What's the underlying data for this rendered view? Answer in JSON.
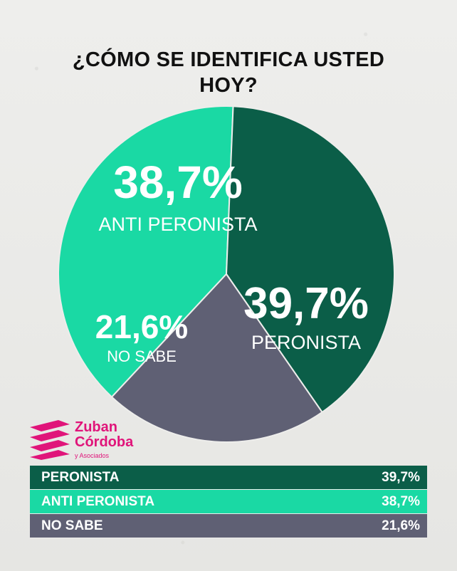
{
  "title": "¿CÓMO SE IDENTIFICA USTED HOY?",
  "chart_data": {
    "type": "pie",
    "title": "¿CÓMO SE IDENTIFICA USTED HOY?",
    "slices": [
      {
        "label": "ANTI PERONISTA",
        "value": 38.7,
        "display": "38,7%",
        "color": "#1ad9a4"
      },
      {
        "label": "PERONISTA",
        "value": 39.7,
        "display": "39,7%",
        "color": "#0b5e48"
      },
      {
        "label": "NO SABE",
        "value": 21.6,
        "display": "21,6%",
        "color": "#5f6074"
      }
    ]
  },
  "logo": {
    "line1": "Zuban",
    "line2": "Córdoba",
    "line3": "y Asociados",
    "color": "#e0147a"
  },
  "table": {
    "rows": [
      {
        "label": "PERONISTA",
        "value": "39,7%",
        "color": "#0b5e48"
      },
      {
        "label": "ANTI PERONISTA",
        "value": "38,7%",
        "color": "#1ad9a4"
      },
      {
        "label": "NO SABE",
        "value": "21,6%",
        "color": "#5f6074"
      }
    ]
  }
}
